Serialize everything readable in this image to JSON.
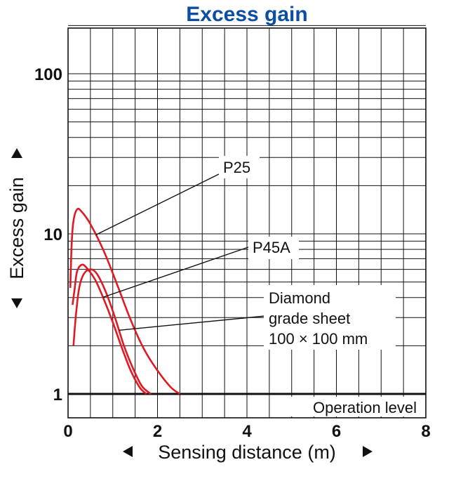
{
  "chart_data": {
    "type": "line",
    "title": "Excess gain",
    "xlabel": "Sensing distance (m)",
    "ylabel": "Excess gain",
    "x_scale": "linear",
    "y_scale": "log",
    "xlim": [
      0,
      8
    ],
    "ylim": [
      0.75,
      250
    ],
    "x_ticks": [
      "0",
      "2",
      "4",
      "6",
      "8"
    ],
    "y_ticks": [
      "1",
      "10",
      "100"
    ],
    "grid": true,
    "series": [
      {
        "name": "P25",
        "color": "#e01a24",
        "points": [
          [
            0.05,
            4.6
          ],
          [
            0.08,
            8.5
          ],
          [
            0.12,
            12.0
          ],
          [
            0.2,
            14.2
          ],
          [
            0.3,
            13.8
          ],
          [
            0.5,
            11.5
          ],
          [
            0.8,
            7.8
          ],
          [
            1.1,
            4.8
          ],
          [
            1.4,
            2.9
          ],
          [
            1.7,
            1.9
          ],
          [
            2.0,
            1.4
          ],
          [
            2.3,
            1.1
          ],
          [
            2.5,
            1.0
          ]
        ]
      },
      {
        "name": "P45A",
        "color": "#e01a24",
        "points": [
          [
            0.1,
            3.6
          ],
          [
            0.15,
            4.6
          ],
          [
            0.2,
            5.8
          ],
          [
            0.3,
            6.4
          ],
          [
            0.4,
            6.2
          ],
          [
            0.6,
            5.2
          ],
          [
            0.8,
            3.9
          ],
          [
            1.0,
            2.8
          ],
          [
            1.2,
            1.95
          ],
          [
            1.4,
            1.4
          ],
          [
            1.6,
            1.1
          ],
          [
            1.75,
            1.0
          ]
        ]
      },
      {
        "name": "Diamond grade sheet 100 × 100 mm",
        "color": "#e01a24",
        "points": [
          [
            0.12,
            2.0
          ],
          [
            0.18,
            3.2
          ],
          [
            0.25,
            4.6
          ],
          [
            0.35,
            5.6
          ],
          [
            0.5,
            6.0
          ],
          [
            0.65,
            5.6
          ],
          [
            0.85,
            4.3
          ],
          [
            1.05,
            3.0
          ],
          [
            1.25,
            2.0
          ],
          [
            1.45,
            1.45
          ],
          [
            1.65,
            1.12
          ],
          [
            1.85,
            1.0
          ]
        ]
      }
    ],
    "annotations": {
      "p25": "P25",
      "p45a": "P45A",
      "diamond_line1": "Diamond",
      "diamond_line2": "grade sheet",
      "diamond_line3": "100 × 100 mm",
      "operation_level": "Operation level",
      "operation_level_value": 1
    }
  }
}
